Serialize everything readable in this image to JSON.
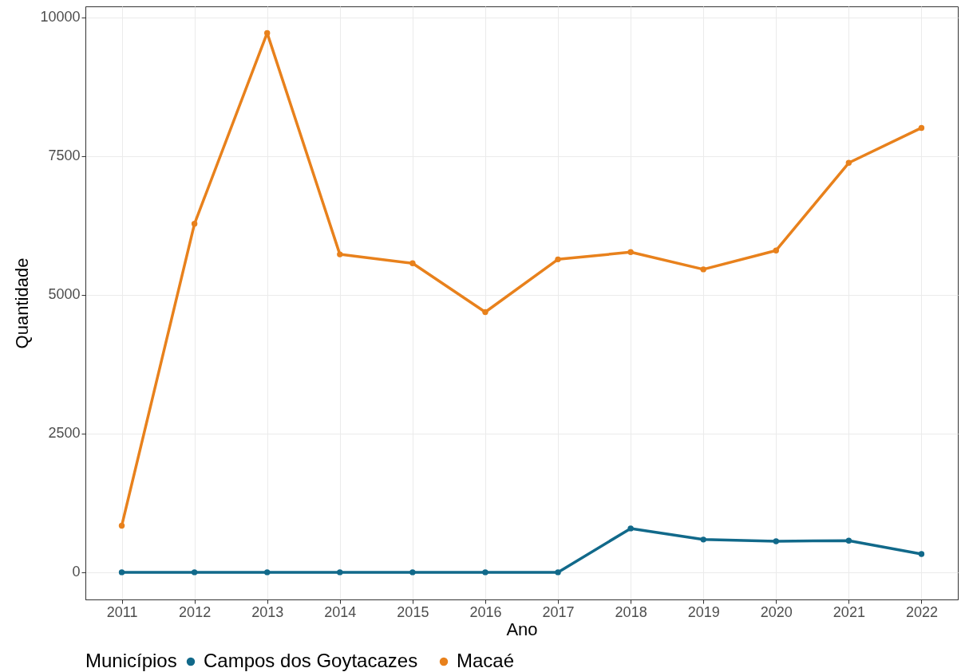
{
  "chart_data": {
    "type": "line",
    "xlabel": "Ano",
    "ylabel": "Quantidade",
    "legend_title": "Municípios",
    "legend": "bottom",
    "grid": true,
    "marker": "circle",
    "line_style": "solid",
    "categories": [
      "2011",
      "2012",
      "2013",
      "2014",
      "2015",
      "2016",
      "2017",
      "2018",
      "2019",
      "2020",
      "2021",
      "2022"
    ],
    "ylim": [
      -490,
      10200
    ],
    "yticks": [
      0,
      2500,
      5000,
      7500,
      10000
    ],
    "series": [
      {
        "name": "Campos dos Goytacazes",
        "color": "#11698a",
        "values": [
          0,
          0,
          0,
          0,
          0,
          0,
          0,
          790,
          590,
          560,
          570,
          330
        ]
      },
      {
        "name": "Macaé",
        "color": "#e8811c",
        "values": [
          840,
          6280,
          9720,
          5730,
          5570,
          4690,
          5640,
          5770,
          5460,
          5800,
          7380,
          8010
        ]
      }
    ]
  }
}
